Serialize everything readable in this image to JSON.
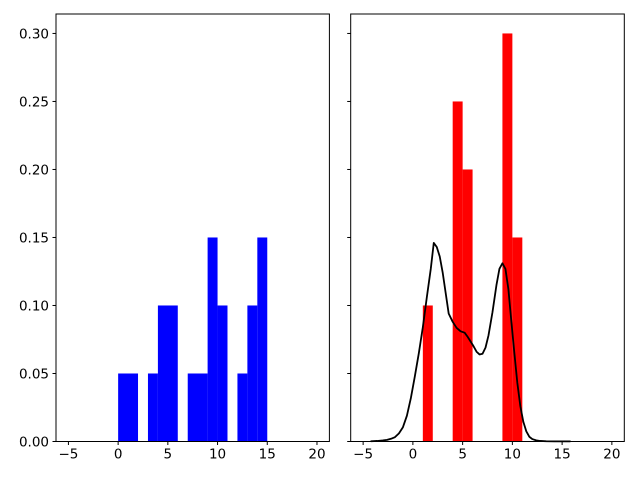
{
  "figure": {
    "background": "#ffffff",
    "axes_edge_color": "#000000",
    "tick_color": "#000000",
    "tick_label_color": "#000000"
  },
  "chart_data": [
    {
      "id": "left",
      "type": "bar",
      "title": "",
      "xlabel": "",
      "ylabel": "",
      "xlim": [
        -6.25,
        21.25
      ],
      "ylim": [
        0,
        0.3143
      ],
      "grid": false,
      "legend": null,
      "xticks": {
        "values": [
          -5,
          0,
          5,
          10,
          15,
          20
        ],
        "labels": [
          "−5",
          "0",
          "5",
          "10",
          "15",
          "20"
        ]
      },
      "yticks": {
        "values": [
          0.0,
          0.05,
          0.1,
          0.15,
          0.2,
          0.25,
          0.3
        ],
        "labels": [
          "0.00",
          "0.05",
          "0.10",
          "0.15",
          "0.20",
          "0.25",
          "0.30"
        ],
        "show_labels": true
      },
      "series": [
        {
          "name": "blue-histogram",
          "kind": "bars",
          "color": "#0000ff",
          "bars": [
            [
              0,
              2,
              0.05
            ],
            [
              3,
              4,
              0.05
            ],
            [
              4,
              6,
              0.1
            ],
            [
              7,
              9,
              0.05
            ],
            [
              9,
              10,
              0.15
            ],
            [
              10,
              11,
              0.1
            ],
            [
              12,
              13,
              0.05
            ],
            [
              13,
              14,
              0.1
            ],
            [
              14,
              15,
              0.15
            ]
          ]
        }
      ]
    },
    {
      "id": "right",
      "type": "bar+line",
      "title": "",
      "xlabel": "",
      "ylabel": "",
      "xlim": [
        -6.25,
        21.25
      ],
      "ylim": [
        0,
        0.3143
      ],
      "grid": false,
      "legend": null,
      "xticks": {
        "values": [
          -5,
          0,
          5,
          10,
          15,
          20
        ],
        "labels": [
          "−5",
          "0",
          "5",
          "10",
          "15",
          "20"
        ]
      },
      "yticks": {
        "values": [
          0.0,
          0.05,
          0.1,
          0.15,
          0.2,
          0.25,
          0.3
        ],
        "labels": [
          "0.00",
          "0.05",
          "0.10",
          "0.15",
          "0.20",
          "0.25",
          "0.30"
        ],
        "show_labels": false
      },
      "series": [
        {
          "name": "red-histogram",
          "kind": "bars",
          "color": "#ff0000",
          "bars": [
            [
              1,
              2,
              0.1
            ],
            [
              4,
              5,
              0.25
            ],
            [
              5,
              6,
              0.2
            ],
            [
              9,
              10,
              0.3
            ],
            [
              10,
              11,
              0.15
            ]
          ]
        },
        {
          "name": "kde-curve",
          "kind": "line",
          "color": "#000000",
          "width": 1.8,
          "x": [
            -4.2,
            -3.6,
            -3.0,
            -2.6,
            -2.2,
            -1.8,
            -1.4,
            -1.0,
            -0.6,
            -0.2,
            0.2,
            0.6,
            1.0,
            1.4,
            1.8,
            2.1,
            2.4,
            2.7,
            3.0,
            3.3,
            3.6,
            4.0,
            4.4,
            4.8,
            5.2,
            5.5,
            5.8,
            6.1,
            6.4,
            6.7,
            7.0,
            7.3,
            7.6,
            8.0,
            8.4,
            8.7,
            9.0,
            9.3,
            9.6,
            9.9,
            10.2,
            10.5,
            10.8,
            11.1,
            11.4,
            11.7,
            12.0,
            12.4,
            12.8,
            13.4,
            14.2,
            15.0,
            15.8
          ],
          "y": [
            0.0002,
            0.0004,
            0.0008,
            0.0012,
            0.002,
            0.0032,
            0.006,
            0.0105,
            0.019,
            0.032,
            0.048,
            0.065,
            0.084,
            0.106,
            0.127,
            0.146,
            0.143,
            0.136,
            0.124,
            0.109,
            0.094,
            0.088,
            0.0835,
            0.081,
            0.08,
            0.077,
            0.0735,
            0.07,
            0.066,
            0.064,
            0.0645,
            0.069,
            0.078,
            0.095,
            0.115,
            0.127,
            0.131,
            0.127,
            0.112,
            0.088,
            0.065,
            0.043,
            0.026,
            0.0145,
            0.0075,
            0.0035,
            0.0018,
            0.0008,
            0.0004,
            0.0002,
            0.0001,
            0.0001,
            0.0001
          ]
        }
      ]
    }
  ]
}
